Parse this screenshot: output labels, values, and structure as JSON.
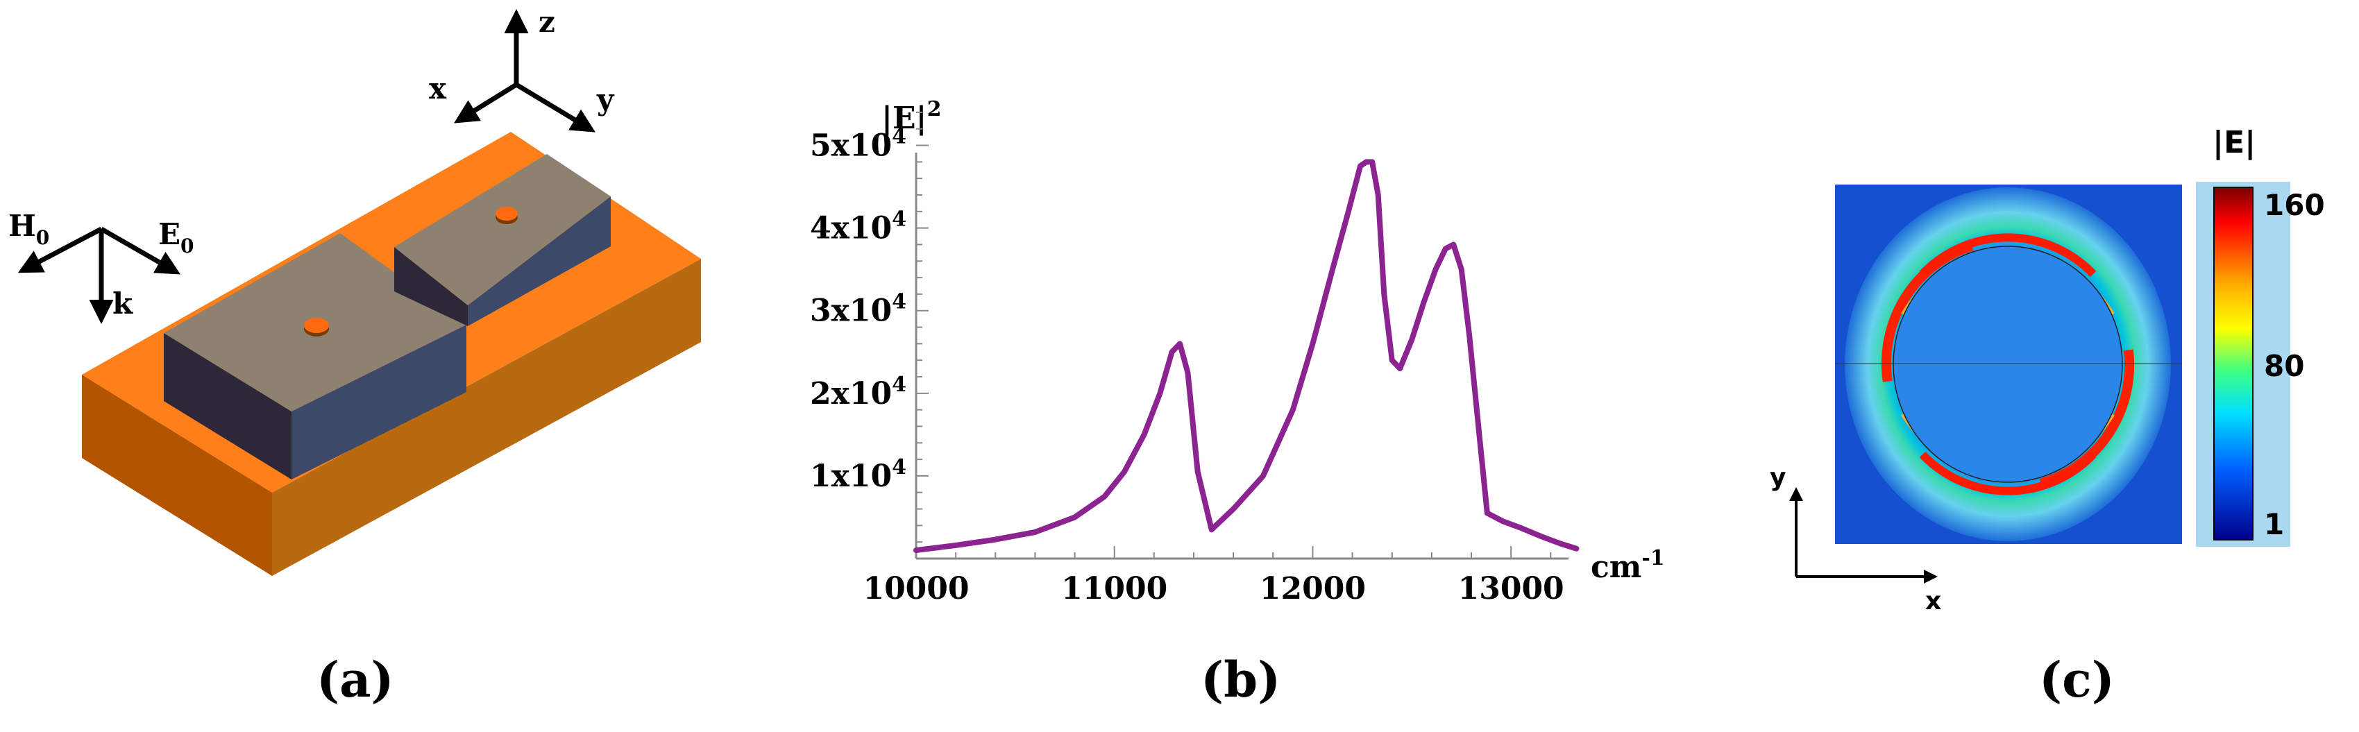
{
  "figure": {
    "panel_labels": [
      "(a)",
      "(b)",
      "(c)"
    ]
  },
  "panel_a": {
    "axis_labels": {
      "x": "x",
      "y": "y",
      "z": "z"
    },
    "field_labels": {
      "h": "H",
      "h_sub": "0",
      "e": "E",
      "e_sub": "0",
      "k": "k"
    },
    "colors": {
      "substrate_top": "#ff7f1a",
      "substrate_front": "#cc6a00",
      "substrate_side": "#8a3200",
      "block_top": "#8f8170",
      "block_front": "#2c2838",
      "block_side": "#3c4968",
      "dot": "#ff6a10"
    }
  },
  "chart_data": {
    "type": "line",
    "title": "",
    "xlabel": "cm",
    "xlabel_sup": "-1",
    "ylabel": "|E|",
    "ylabel_sup": "2",
    "xlim": [
      10000,
      13500
    ],
    "ylim": [
      0,
      55000
    ],
    "xticks": [
      10000,
      11000,
      12000,
      13000
    ],
    "xtick_labels": [
      "10000",
      "11000",
      "12000",
      "13000"
    ],
    "yticks": [
      10000,
      20000,
      30000,
      40000,
      50000
    ],
    "ytick_labels": [
      {
        "base": "1x10",
        "exp": "4"
      },
      {
        "base": "2x10",
        "exp": "4"
      },
      {
        "base": "3x10",
        "exp": "4"
      },
      {
        "base": "4x10",
        "exp": "4"
      },
      {
        "base": "5x10",
        "exp": "4"
      }
    ],
    "grid": false,
    "color": "#8b2391",
    "series": [
      {
        "x": [
          10000,
          10200,
          10400,
          10600,
          10800,
          10950,
          11050,
          11150,
          11230,
          11290,
          11330,
          11370,
          11420,
          11490,
          11600,
          11750,
          11900,
          12000,
          12100,
          12180,
          12240,
          12270,
          12300,
          12330,
          12360,
          12400,
          12440,
          12500,
          12560,
          12620,
          12670,
          12710,
          12750,
          12790,
          12840,
          12880,
          12960,
          13050,
          13150,
          13250,
          13330
        ],
        "y": [
          1000,
          1600,
          2300,
          3200,
          5000,
          7500,
          10500,
          15000,
          20000,
          25000,
          26000,
          22500,
          10500,
          3500,
          6000,
          10000,
          18000,
          26000,
          35000,
          42000,
          47500,
          48000,
          48000,
          44000,
          32000,
          24000,
          23000,
          26500,
          31000,
          35000,
          37500,
          38000,
          35000,
          27000,
          15000,
          5500,
          4500,
          3700,
          2700,
          1800,
          1200
        ]
      }
    ]
  },
  "panel_c": {
    "colorbar_title": "|E|",
    "colorbar_ticks": [
      "160",
      "80",
      "1"
    ],
    "axis_labels": {
      "x": "x",
      "y": "y"
    }
  }
}
